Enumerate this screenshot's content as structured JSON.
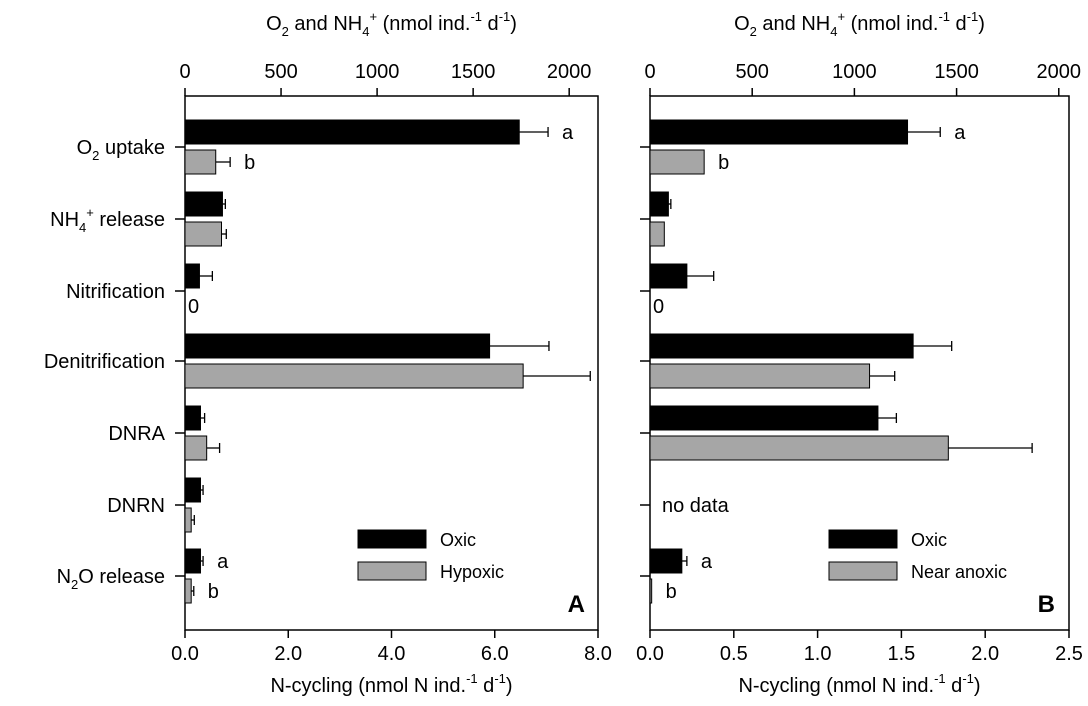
{
  "categories": [
    {
      "pre": "O",
      "sub": "2",
      "sup": "",
      "post": " uptake"
    },
    {
      "pre": "NH",
      "sub": "4",
      "sup": "+",
      "post": " release"
    },
    {
      "pre": "Nitrification",
      "sub": "",
      "sup": "",
      "post": ""
    },
    {
      "pre": "Denitrification",
      "sub": "",
      "sup": "",
      "post": ""
    },
    {
      "pre": "DNRA",
      "sub": "",
      "sup": "",
      "post": ""
    },
    {
      "pre": "DNRN",
      "sub": "",
      "sup": "",
      "post": ""
    },
    {
      "pre": "N",
      "sub": "2",
      "sup": "",
      "post": "O release"
    }
  ],
  "top_axis_label": {
    "p1": "O",
    "s1": "2",
    "p2": " and NH",
    "s2": "4",
    "p3": " (nmol ind.",
    "p4": " d",
    "p5": ")",
    "sup_plus": "+",
    "sup_neg": "-1"
  },
  "bottom_axis_label": {
    "p1": "N-cycling (nmol N ind.",
    "p2": " d",
    "p3": ")",
    "sup_neg": "-1"
  },
  "colors": {
    "oxic": "#000000",
    "hypoxic": "#a6a6a6",
    "bar_stroke": "#000000"
  },
  "chart_data": [
    {
      "type": "bar",
      "orientation": "horizontal",
      "panel_label": "A",
      "x_bottom": {
        "lim": [
          0,
          8
        ],
        "ticks": [
          "0.0",
          "2.0",
          "4.0",
          "6.0",
          "8.0"
        ]
      },
      "x_top": {
        "lim": [
          0,
          2150
        ],
        "ticks": [
          "0",
          "500",
          "1000",
          "1500",
          "2000"
        ]
      },
      "legend": {
        "position": "bottom-right",
        "entries": [
          {
            "name": "Oxic",
            "series": 0
          },
          {
            "name": "Hypoxic",
            "series": 1
          }
        ]
      },
      "series": [
        {
          "name": "Oxic",
          "color_key": "oxic",
          "values": [
            1740,
            195,
            0.28,
            5.9,
            0.3,
            0.3,
            0.3
          ],
          "axis": [
            "top",
            "top",
            "bottom",
            "bottom",
            "bottom",
            "bottom",
            "bottom"
          ],
          "error": [
            150,
            15,
            0.25,
            1.15,
            0.08,
            0.05,
            0.05
          ]
        },
        {
          "name": "Hypoxic",
          "color_key": "hypoxic",
          "values": [
            160,
            190,
            null,
            6.55,
            0.42,
            0.12,
            0.12
          ],
          "axis": [
            "top",
            "top",
            "bottom",
            "bottom",
            "bottom",
            "bottom",
            "bottom"
          ],
          "error": [
            75,
            25,
            null,
            1.3,
            0.25,
            0.06,
            0.05
          ]
        }
      ],
      "annotations": [
        {
          "row": 0,
          "series": 0,
          "text": "a"
        },
        {
          "row": 0,
          "series": 1,
          "text": "b"
        },
        {
          "row": 2,
          "series": 1,
          "text": "0"
        },
        {
          "row": 6,
          "series": 0,
          "text": "a"
        },
        {
          "row": 6,
          "series": 1,
          "text": "b"
        }
      ]
    },
    {
      "type": "bar",
      "orientation": "horizontal",
      "panel_label": "B",
      "x_bottom": {
        "lim": [
          0,
          2.5
        ],
        "ticks": [
          "0.0",
          "0.5",
          "1.0",
          "1.5",
          "2.0",
          "2.5"
        ]
      },
      "x_top": {
        "lim": [
          0,
          2050
        ],
        "ticks": [
          "0",
          "500",
          "1000",
          "1500",
          "2000"
        ]
      },
      "legend": {
        "position": "bottom-right",
        "entries": [
          {
            "name": "Oxic",
            "series": 0
          },
          {
            "name": "Near anoxic",
            "series": 1
          }
        ]
      },
      "series": [
        {
          "name": "Oxic",
          "color_key": "oxic",
          "values": [
            1260,
            90,
            0.22,
            1.57,
            1.36,
            null,
            0.19
          ],
          "axis": [
            "top",
            "top",
            "bottom",
            "bottom",
            "bottom",
            "bottom",
            "bottom"
          ],
          "error": [
            160,
            12,
            0.16,
            0.23,
            0.11,
            null,
            0.03
          ]
        },
        {
          "name": "Near anoxic",
          "color_key": "hypoxic",
          "values": [
            265,
            70,
            null,
            1.31,
            1.78,
            null,
            0.01
          ],
          "axis": [
            "top",
            "top",
            "bottom",
            "bottom",
            "bottom",
            "bottom",
            "bottom"
          ],
          "error": [
            0,
            0,
            null,
            0.15,
            0.5,
            null,
            0.0
          ]
        }
      ],
      "annotations": [
        {
          "row": 0,
          "series": 0,
          "text": "a"
        },
        {
          "row": 0,
          "series": 1,
          "text": "b"
        },
        {
          "row": 2,
          "series": 1,
          "text": "0"
        },
        {
          "row": 5,
          "series": -1,
          "text": "no data"
        },
        {
          "row": 6,
          "series": 0,
          "text": "a"
        },
        {
          "row": 6,
          "series": 1,
          "text": "b"
        }
      ]
    }
  ]
}
